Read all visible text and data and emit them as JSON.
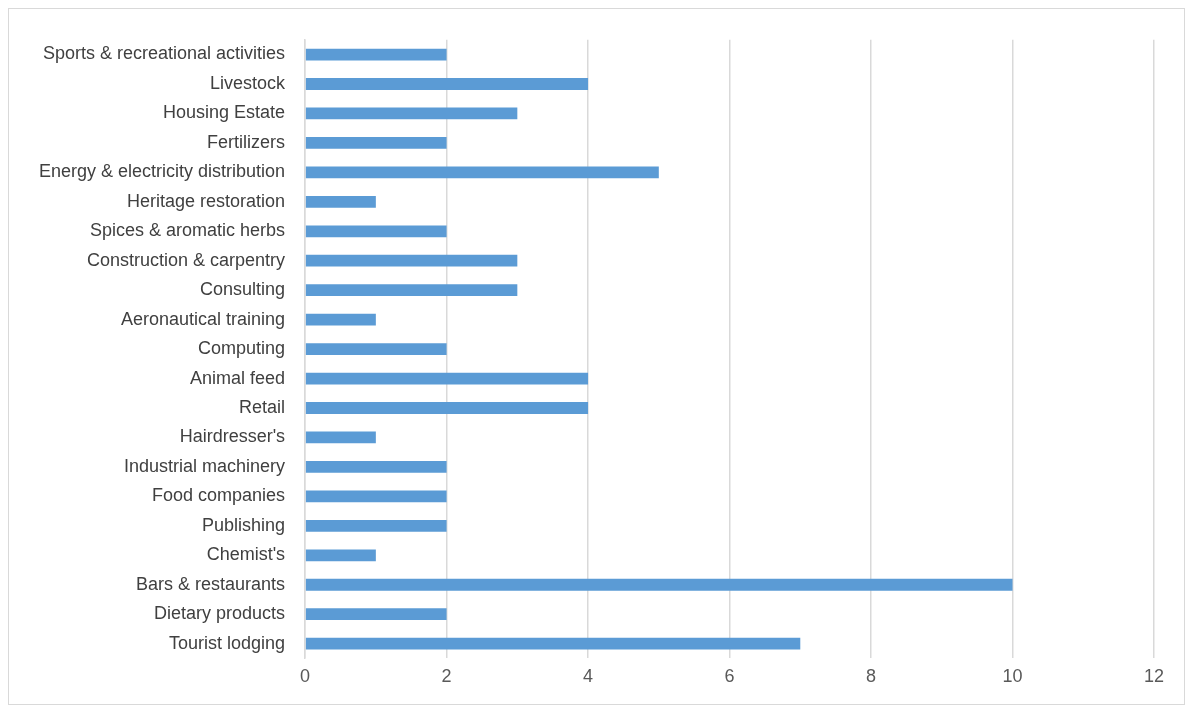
{
  "chart_data": {
    "type": "bar",
    "orientation": "horizontal",
    "categories": [
      "Sports & recreational activities",
      "Livestock",
      "Housing Estate",
      "Fertilizers",
      "Energy & electricity distribution",
      "Heritage restoration",
      "Spices & aromatic herbs",
      "Construction & carpentry",
      "Consulting",
      "Aeronautical training",
      "Computing",
      "Animal feed",
      "Retail",
      "Hairdresser's",
      "Industrial machinery",
      "Food companies",
      "Publishing",
      "Chemist's",
      "Bars & restaurants",
      "Dietary products",
      "Tourist lodging"
    ],
    "values": [
      2,
      4,
      3,
      2,
      5,
      1,
      2,
      3,
      3,
      1,
      2,
      4,
      4,
      1,
      2,
      2,
      2,
      1,
      10,
      2,
      7
    ],
    "color": "#5b9bd5",
    "xlim": [
      0,
      12
    ],
    "xticks": [
      0,
      2,
      4,
      6,
      8,
      10,
      12
    ],
    "grid": "x",
    "legend": false
  }
}
